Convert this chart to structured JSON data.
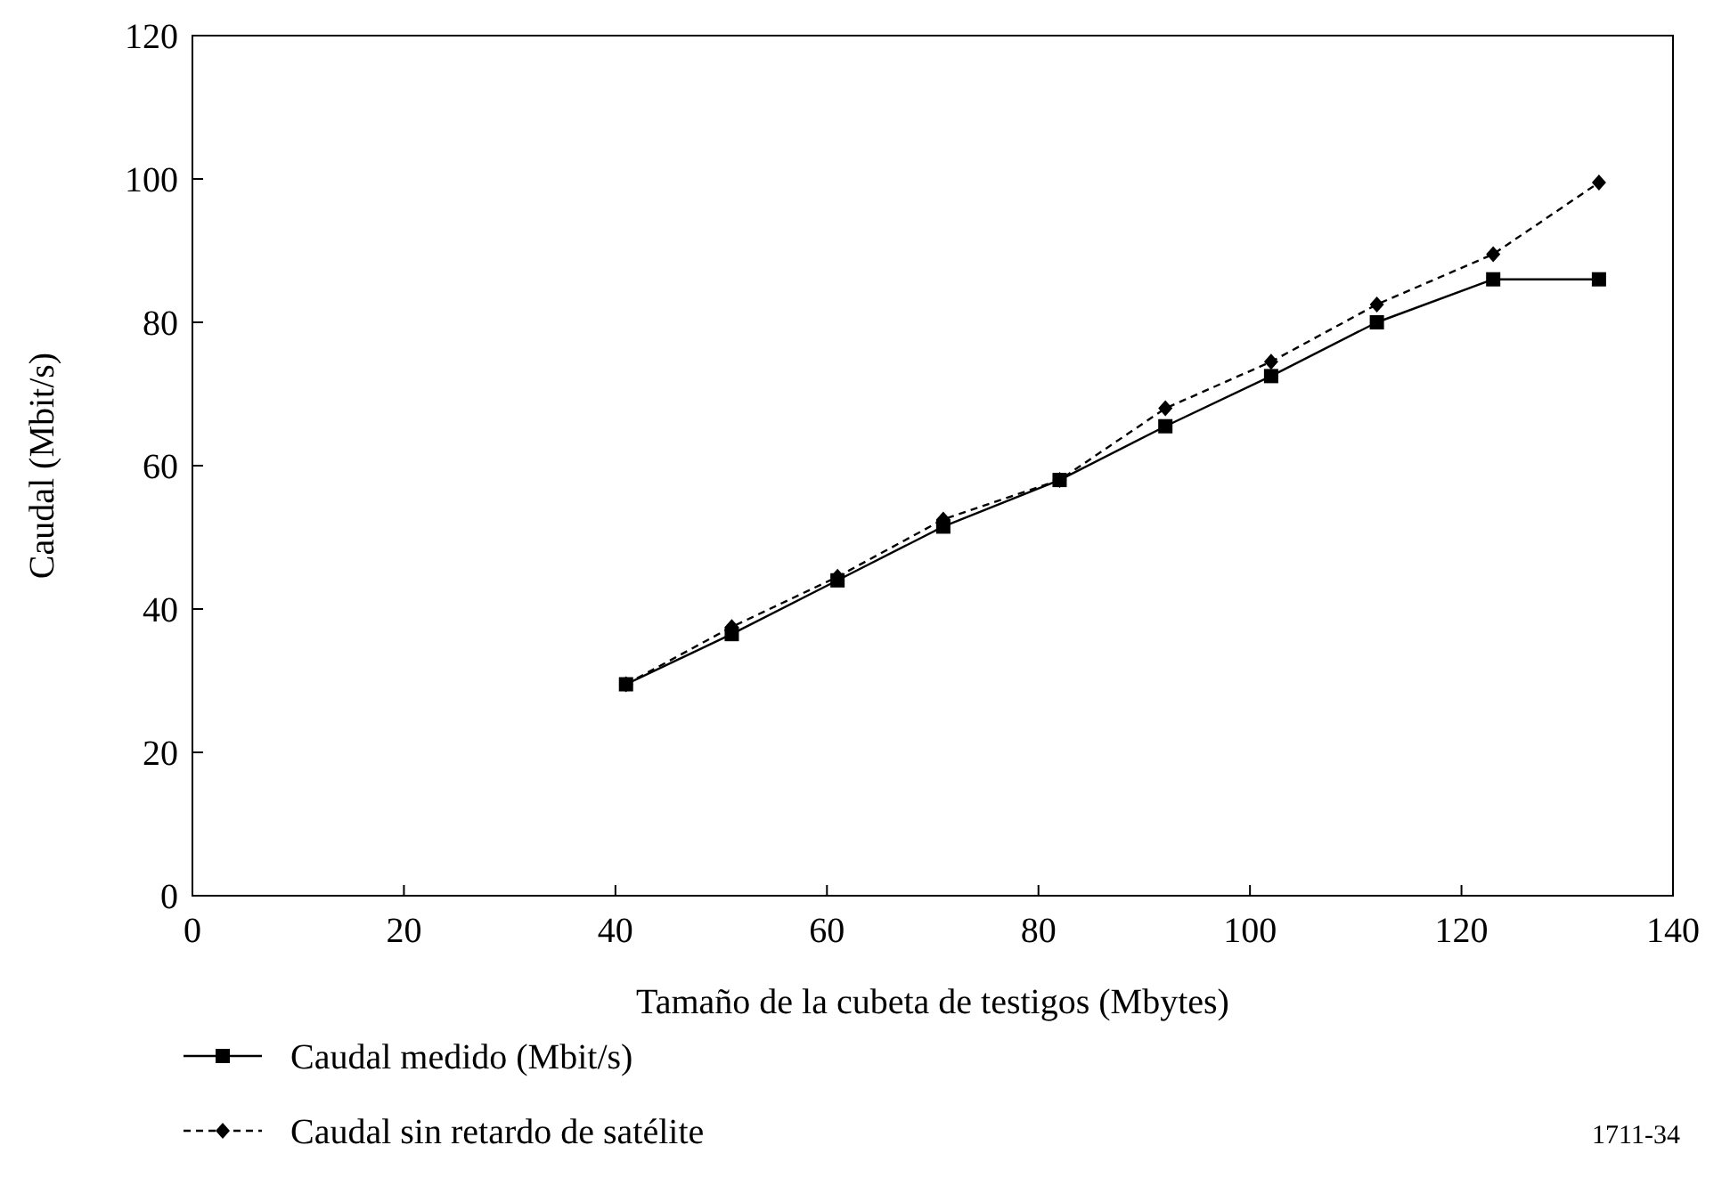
{
  "chart_data": {
    "type": "line",
    "xlabel": "Tamaño de la cubeta de testigos (Mbytes)",
    "ylabel": "Caudal (Mbit/s)",
    "xlim": [
      0,
      140
    ],
    "xticks": [
      0,
      20,
      40,
      60,
      80,
      100,
      120,
      140
    ],
    "ylim": [
      0,
      120
    ],
    "yticks": [
      0,
      20,
      40,
      60,
      80,
      100,
      120
    ],
    "grid": false,
    "legend": "bottom left",
    "annotations": [
      "1711-34"
    ],
    "x": [
      41,
      51,
      61,
      71,
      82,
      92,
      102,
      112,
      123,
      133
    ],
    "series": [
      {
        "name": "Caudal medido (Mbit/s)",
        "color": "#000000",
        "marker": "square",
        "line_style": "solid",
        "values": [
          29.5,
          36.5,
          44,
          51.5,
          58,
          65.5,
          72.5,
          80,
          86,
          86
        ]
      },
      {
        "name": "Caudal sin retardo de satélite",
        "color": "#000000",
        "marker": "diamond",
        "line_style": "dashed",
        "values": [
          29.5,
          37.5,
          44.5,
          52.5,
          58,
          68,
          74.5,
          82.5,
          89.5,
          99.5
        ]
      }
    ]
  }
}
